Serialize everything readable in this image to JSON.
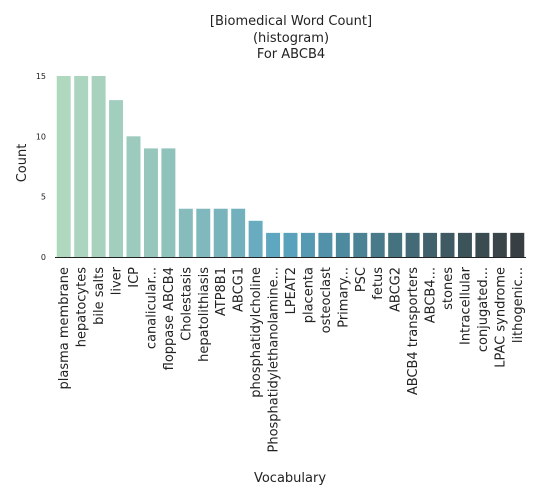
{
  "chart_data": {
    "type": "bar",
    "title": "[Biomedical Word Count]\n(histogram)\n For ABCB4",
    "xlabel": "Vocabulary",
    "ylabel": "Count",
    "ylim": [
      0,
      15
    ],
    "yticks": [
      0,
      5,
      10,
      15
    ],
    "grid": false,
    "categories": [
      "plasma membrane",
      "hepatocytes",
      "bile salts",
      "liver",
      "ICP",
      "canalicular...",
      "floppase ABCB4",
      "Cholestasis",
      "hepatolithiasis",
      "ATP8B1",
      "ABCG1",
      "phosphatidylcholine",
      "Phosphatidylethanolamine...",
      "LPEAT2",
      "placenta",
      "osteoclast",
      "Primary...",
      "PSC",
      "fetus",
      "ABCG2",
      "ABCB4 transporters",
      "ABCB4...",
      "stones",
      "Intracellular",
      "conjugated...",
      "LPAC syndrome",
      "lithogenic..."
    ],
    "values": [
      15,
      15,
      15,
      13,
      10,
      9,
      9,
      4,
      4,
      4,
      4,
      3,
      2,
      2,
      2,
      2,
      2,
      2,
      2,
      2,
      2,
      2,
      2,
      2,
      2,
      2,
      2
    ],
    "colors": [
      "#b0d8bf",
      "#acd5bf",
      "#a8d2be",
      "#a2cebe",
      "#9ccabd",
      "#96c6bc",
      "#90c2bc",
      "#86bcbc",
      "#7fb8bd",
      "#79b4bd",
      "#72b0bd",
      "#6aacbf",
      "#5fa6c0",
      "#5aa1bc",
      "#5699b2",
      "#5292a8",
      "#4e8a9e",
      "#4b8294",
      "#487a89",
      "#45727f",
      "#436a76",
      "#41626c",
      "#3f5a63",
      "#3d535a",
      "#3b4c51",
      "#394549",
      "#373f42"
    ]
  }
}
